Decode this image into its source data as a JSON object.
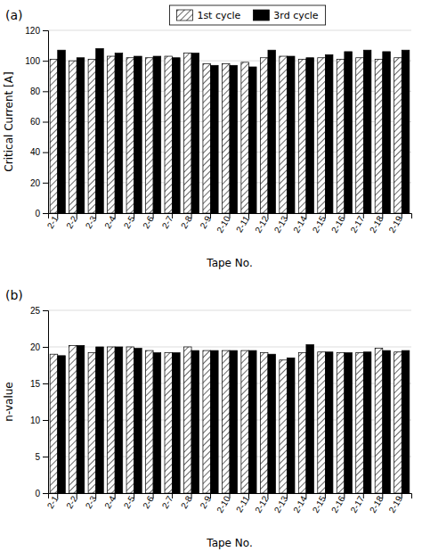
{
  "chart_data": [
    {
      "type": "bar",
      "title": "(a)",
      "categories": [
        "2-1",
        "2-2",
        "2-3",
        "2-4",
        "2-5",
        "2-6",
        "2-7",
        "2-8",
        "2-9",
        "2-10",
        "2-11",
        "2-12",
        "2-13",
        "2-14",
        "2-15",
        "2-16",
        "2-17",
        "2-18",
        "2-19"
      ],
      "series": [
        {
          "name": "1st cycle",
          "color": "white",
          "values": [
            101,
            100,
            101,
            103,
            102,
            102,
            103,
            105,
            98,
            98,
            99,
            102,
            103,
            101,
            102,
            101,
            102,
            101,
            102
          ]
        },
        {
          "name": "3rd cycle",
          "color": "black",
          "values": [
            107,
            102,
            108,
            105,
            103,
            103,
            102,
            105,
            97,
            97,
            96,
            107,
            103,
            102,
            104,
            106,
            107,
            106,
            107
          ]
        }
      ],
      "x_label": "Tape No.",
      "y_label": "Critical Current [A]",
      "ylim": [
        0,
        120
      ],
      "yticks": [
        0,
        20,
        40,
        60,
        80,
        100,
        120
      ],
      "grid": true,
      "legend": "top"
    },
    {
      "type": "bar",
      "title": "(b)",
      "categories": [
        "2-1",
        "2-2",
        "2-3",
        "2-4",
        "2-5",
        "2-6",
        "2-7",
        "2-8",
        "2-9",
        "2-10",
        "2-11",
        "2-12",
        "2-13",
        "2-14",
        "2-15",
        "2-16",
        "2-17",
        "2-18",
        "2-19"
      ],
      "series": [
        {
          "color": "white",
          "values": [
            19.0,
            20.2,
            19.2,
            20.0,
            20.0,
            19.5,
            19.2,
            20.0,
            19.5,
            19.5,
            19.5,
            19.2,
            18.2,
            19.2,
            19.3,
            19.2,
            19.2,
            19.8,
            19.3
          ]
        },
        {
          "color": "black",
          "values": [
            18.8,
            20.2,
            20.0,
            20.0,
            19.8,
            19.2,
            19.2,
            19.5,
            19.5,
            19.5,
            19.5,
            19.0,
            18.5,
            20.3,
            19.3,
            19.2,
            19.3,
            19.5,
            19.5
          ]
        }
      ],
      "x_label": "Tape No.",
      "y_label": "n-value",
      "ylim": [
        0,
        25
      ],
      "yticks": [
        0,
        5,
        10,
        15,
        20,
        25
      ],
      "grid": true
    }
  ]
}
